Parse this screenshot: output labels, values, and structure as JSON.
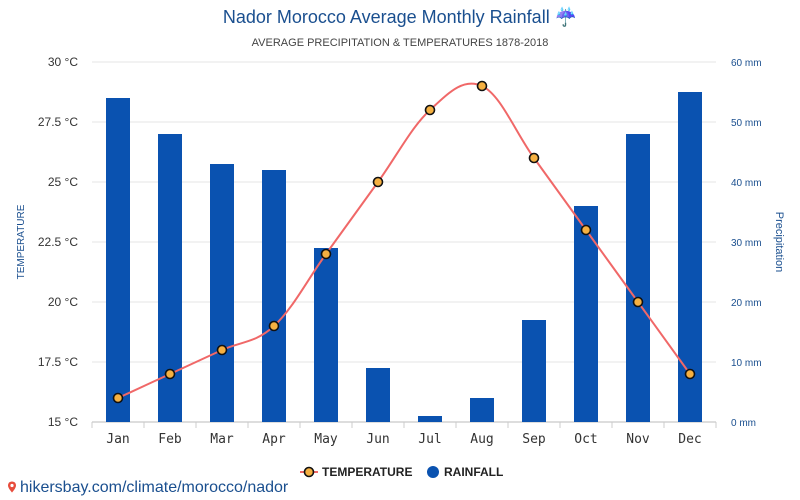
{
  "chart_data": {
    "type": "bar+line",
    "title": "Nador Morocco Average Monthly Rainfall",
    "title_icon": "umbrella-rain-icon",
    "subtitle": "AVERAGE PRECIPITATION & TEMPERATURES 1878-2018",
    "categories": [
      "Jan",
      "Feb",
      "Mar",
      "Apr",
      "May",
      "Jun",
      "Jul",
      "Aug",
      "Sep",
      "Oct",
      "Nov",
      "Dec"
    ],
    "left_axis": {
      "label": "TEMPERATURE",
      "range": [
        15,
        30
      ],
      "ticks": [
        "15 °C",
        "17.5 °C",
        "20 °C",
        "22.5 °C",
        "25 °C",
        "27.5 °C",
        "30 °C"
      ]
    },
    "right_axis": {
      "label": "Precipitation",
      "range": [
        0,
        60
      ],
      "ticks": [
        "0 mm",
        "10 mm",
        "20 mm",
        "30 mm",
        "40 mm",
        "50 mm",
        "60 mm"
      ]
    },
    "series": [
      {
        "name": "TEMPERATURE",
        "axis": "left",
        "kind": "line",
        "color": "#f06868",
        "values": [
          16,
          17,
          18,
          19,
          22,
          25,
          28,
          29,
          26,
          23,
          20,
          17
        ]
      },
      {
        "name": "RAINFALL",
        "axis": "right",
        "kind": "bar",
        "color": "#0a52b0",
        "values": [
          54,
          48,
          43,
          42,
          29,
          9,
          1,
          4,
          17,
          36,
          48,
          55
        ]
      }
    ],
    "grid": true,
    "legend_position": "bottom"
  },
  "footer": {
    "link_text": "hikersbay.com/climate/morocco/nador",
    "icon": "pin-icon"
  }
}
